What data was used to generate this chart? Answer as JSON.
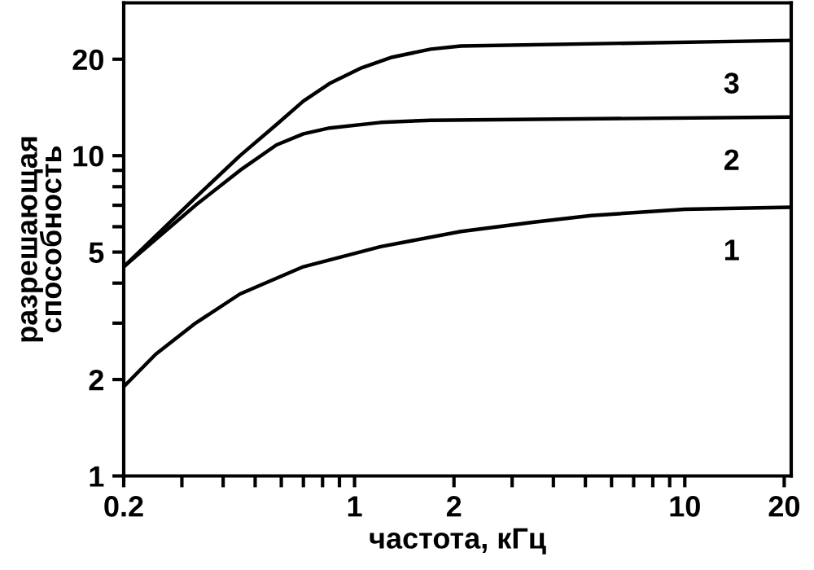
{
  "chart_data": {
    "type": "line",
    "xlabel": "частота, кГц",
    "ylabel": "разрешающая\nспособность",
    "log": "xy",
    "grid": false,
    "legend": false,
    "marker": "none",
    "line_style": "solid",
    "xlim": [
      0.2,
      21
    ],
    "ylim": [
      1,
      30
    ],
    "xticks": [
      0.2,
      {
        "value": 0.3,
        "label": null
      },
      {
        "value": 0.4,
        "label": null
      },
      {
        "value": 0.5,
        "label": null
      },
      {
        "value": 0.6,
        "label": null
      },
      {
        "value": 0.7,
        "label": null
      },
      {
        "value": 0.8,
        "label": null
      },
      {
        "value": 0.9,
        "label": null
      },
      1,
      2,
      {
        "value": 3,
        "label": null
      },
      {
        "value": 4,
        "label": null
      },
      {
        "value": 5,
        "label": null
      },
      {
        "value": 6,
        "label": null
      },
      {
        "value": 7,
        "label": null
      },
      {
        "value": 8,
        "label": null
      },
      {
        "value": 9,
        "label": null
      },
      10,
      20
    ],
    "yticks": [
      1,
      2,
      {
        "value": 3,
        "label": null
      },
      {
        "value": 4,
        "label": null
      },
      5,
      {
        "value": 6,
        "label": null
      },
      {
        "value": 7,
        "label": null
      },
      {
        "value": 8,
        "label": null
      },
      {
        "value": 9,
        "label": null
      },
      10,
      20
    ],
    "series": [
      {
        "name": "1",
        "color": "#000000",
        "x": [
          0.2,
          0.25,
          0.33,
          0.45,
          0.7,
          1.2,
          2.1,
          3.5,
          5.2,
          10,
          21
        ],
        "values": [
          1.9,
          2.4,
          3.0,
          3.7,
          4.5,
          5.2,
          5.8,
          6.2,
          6.5,
          6.8,
          6.9
        ]
      },
      {
        "name": "2",
        "color": "#000000",
        "x": [
          0.2,
          0.33,
          0.45,
          0.58,
          0.7,
          0.84,
          1.2,
          1.7,
          21
        ],
        "values": [
          4.5,
          7.0,
          9.0,
          10.8,
          11.7,
          12.2,
          12.7,
          12.9,
          13.2
        ]
      },
      {
        "name": "3",
        "color": "#000000",
        "x": [
          0.2,
          0.33,
          0.45,
          0.58,
          0.7,
          0.84,
          1.05,
          1.3,
          1.7,
          2.1,
          21
        ],
        "values": [
          4.5,
          7.4,
          10.0,
          12.5,
          14.8,
          16.8,
          18.8,
          20.3,
          21.5,
          22.0,
          22.9
        ]
      }
    ]
  }
}
